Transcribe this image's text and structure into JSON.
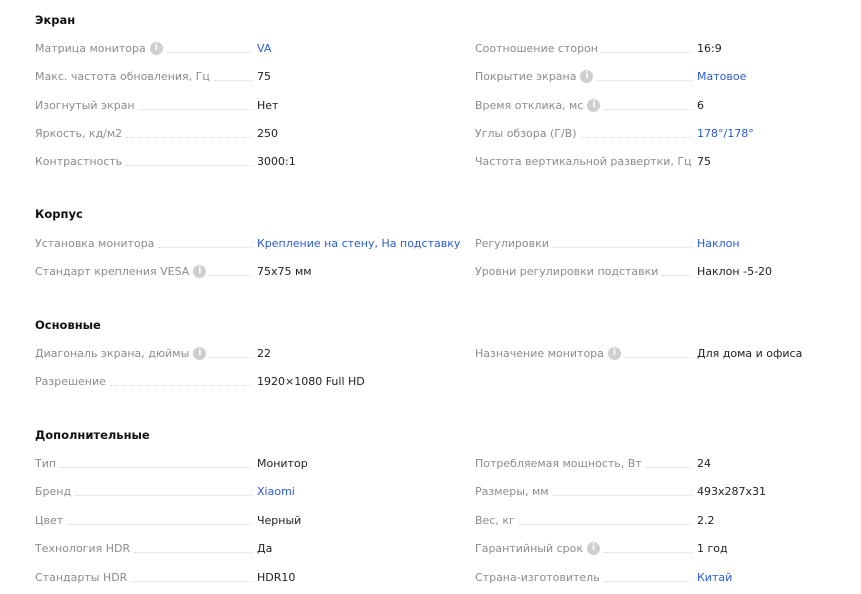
{
  "colors": {
    "link": "#2a5bd7",
    "label": "#8c8c8c",
    "value": "#222222"
  },
  "sections": [
    {
      "title": "Экран",
      "rows": [
        [
          {
            "label": "Матрица монитора",
            "info": true,
            "value": "VA",
            "link": true
          },
          {
            "label": "Соотношение сторон",
            "value": "16:9"
          }
        ],
        [
          {
            "label": "Макс. частота обновления, Гц",
            "value": "75"
          },
          {
            "label": "Покрытие экрана",
            "info": true,
            "value": "Матовое",
            "link": true
          }
        ],
        [
          {
            "label": "Изогнутый экран",
            "value": "Нет"
          },
          {
            "label": "Время отклика, мс",
            "info": true,
            "value": "6"
          }
        ],
        [
          {
            "label": "Яркость, кд/м2",
            "value": "250"
          },
          {
            "label": "Углы обзора (Г/В)",
            "value": "178°/178°",
            "link": true
          }
        ],
        [
          {
            "label": "Контрастность",
            "value": "3000:1"
          },
          {
            "label": "Частота вертикальной развертки, Гц",
            "value": "75"
          }
        ]
      ]
    },
    {
      "title": "Корпус",
      "rows": [
        [
          {
            "label": "Установка монитора",
            "value": "Крепление на стену, На подставку",
            "link": true
          },
          {
            "label": "Регулировки",
            "value": "Наклон",
            "link": true
          }
        ],
        [
          {
            "label": "Стандарт крепления VESA",
            "info": true,
            "value": "75x75 мм"
          },
          {
            "label": "Уровни регулировки подставки",
            "value": "Наклон -5-20"
          }
        ]
      ]
    },
    {
      "title": "Основные",
      "rows": [
        [
          {
            "label": "Диагональ экрана, дюймы",
            "info": true,
            "value": "22"
          },
          {
            "label": "Назначение монитора",
            "info": true,
            "value": "Для дома и офиса"
          }
        ],
        [
          {
            "label": "Разрешение",
            "value": "1920×1080 Full HD"
          }
        ]
      ]
    },
    {
      "title": "Дополнительные",
      "rows": [
        [
          {
            "label": "Тип",
            "value": "Монитор"
          },
          {
            "label": "Потребляемая мощность, Вт",
            "value": "24"
          }
        ],
        [
          {
            "label": "Бренд",
            "value": "Xiaomi",
            "link": true
          },
          {
            "label": "Размеры, мм",
            "value": "493x287x31"
          }
        ],
        [
          {
            "label": "Цвет",
            "value": "Черный"
          },
          {
            "label": "Вес, кг",
            "value": "2.2"
          }
        ],
        [
          {
            "label": "Технология HDR",
            "value": "Да"
          },
          {
            "label": "Гарантийный срок",
            "info": true,
            "value": "1 год"
          }
        ],
        [
          {
            "label": "Стандарты HDR",
            "value": "HDR10"
          },
          {
            "label": "Страна-изготовитель",
            "value": "Китай",
            "link": true
          }
        ]
      ]
    }
  ]
}
